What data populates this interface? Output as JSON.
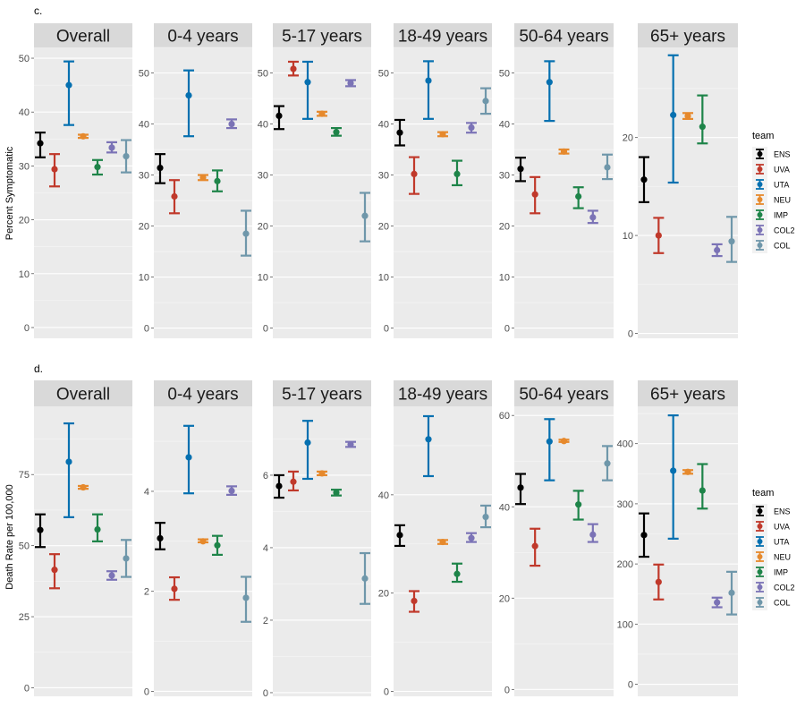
{
  "chart_data": [
    {
      "type": "errorbar",
      "tag": "c.",
      "ylabel": "Percent Symptomatic",
      "legend": {
        "title": "team",
        "placement": "right"
      },
      "panels": [
        {
          "title": "Overall",
          "ylim": [
            -2,
            52
          ],
          "yticks": [
            0,
            10,
            20,
            30,
            40,
            50
          ],
          "points": [
            {
              "team": "ENS",
              "y": 34.2,
              "lo": 31.6,
              "hi": 36.2
            },
            {
              "team": "UVA",
              "y": 29.4,
              "lo": 26.2,
              "hi": 32.2
            },
            {
              "team": "UTA",
              "y": 45.0,
              "lo": 37.6,
              "hi": 49.4
            },
            {
              "team": "NEU",
              "y": 35.5,
              "lo": 35.2,
              "hi": 35.8
            },
            {
              "team": "IMP",
              "y": 29.8,
              "lo": 28.4,
              "hi": 31.1
            },
            {
              "team": "COL2",
              "y": 33.4,
              "lo": 32.5,
              "hi": 34.4
            },
            {
              "team": "COL",
              "y": 31.8,
              "lo": 28.8,
              "hi": 34.8
            }
          ]
        },
        {
          "title": "0-4 years",
          "ylim": [
            -2,
            55
          ],
          "yticks": [
            0,
            10,
            20,
            30,
            40,
            50
          ],
          "points": [
            {
              "team": "ENS",
              "y": 31.4,
              "lo": 28.4,
              "hi": 34.1
            },
            {
              "team": "UVA",
              "y": 25.8,
              "lo": 22.5,
              "hi": 29.0
            },
            {
              "team": "UTA",
              "y": 45.6,
              "lo": 37.6,
              "hi": 50.5
            },
            {
              "team": "NEU",
              "y": 29.5,
              "lo": 29.0,
              "hi": 30.0
            },
            {
              "team": "IMP",
              "y": 28.8,
              "lo": 26.8,
              "hi": 30.9
            },
            {
              "team": "COL2",
              "y": 40.0,
              "lo": 39.2,
              "hi": 40.9
            },
            {
              "team": "COL",
              "y": 18.5,
              "lo": 14.2,
              "hi": 23.0
            }
          ]
        },
        {
          "title": "5-17 years",
          "ylim": [
            -2,
            55
          ],
          "yticks": [
            0,
            10,
            20,
            30,
            40,
            50
          ],
          "points": [
            {
              "team": "ENS",
              "y": 41.6,
              "lo": 39.0,
              "hi": 43.5
            },
            {
              "team": "UVA",
              "y": 50.8,
              "lo": 49.5,
              "hi": 52.2
            },
            {
              "team": "UTA",
              "y": 48.2,
              "lo": 41.0,
              "hi": 52.2
            },
            {
              "team": "NEU",
              "y": 42.0,
              "lo": 41.6,
              "hi": 42.4
            },
            {
              "team": "IMP",
              "y": 38.4,
              "lo": 37.7,
              "hi": 39.2
            },
            {
              "team": "COL2",
              "y": 48.0,
              "lo": 47.4,
              "hi": 48.6
            },
            {
              "team": "COL",
              "y": 22.0,
              "lo": 17.0,
              "hi": 26.5
            }
          ]
        },
        {
          "title": "18-49 years",
          "ylim": [
            -2,
            55
          ],
          "yticks": [
            0,
            10,
            20,
            30,
            40,
            50
          ],
          "points": [
            {
              "team": "ENS",
              "y": 38.3,
              "lo": 35.8,
              "hi": 40.8
            },
            {
              "team": "UVA",
              "y": 30.2,
              "lo": 26.3,
              "hi": 33.5
            },
            {
              "team": "UTA",
              "y": 48.5,
              "lo": 41.0,
              "hi": 52.3
            },
            {
              "team": "NEU",
              "y": 38.0,
              "lo": 37.6,
              "hi": 38.4
            },
            {
              "team": "IMP",
              "y": 30.2,
              "lo": 28.0,
              "hi": 32.8
            },
            {
              "team": "COL2",
              "y": 39.3,
              "lo": 38.3,
              "hi": 40.2
            },
            {
              "team": "COL",
              "y": 44.5,
              "lo": 42.0,
              "hi": 47.0
            }
          ]
        },
        {
          "title": "50-64 years",
          "ylim": [
            -2,
            55
          ],
          "yticks": [
            0,
            10,
            20,
            30,
            40,
            50
          ],
          "points": [
            {
              "team": "ENS",
              "y": 31.2,
              "lo": 28.8,
              "hi": 33.4
            },
            {
              "team": "UVA",
              "y": 26.2,
              "lo": 22.5,
              "hi": 29.6
            },
            {
              "team": "UTA",
              "y": 48.2,
              "lo": 40.6,
              "hi": 52.3
            },
            {
              "team": "NEU",
              "y": 34.6,
              "lo": 34.2,
              "hi": 35.0
            },
            {
              "team": "IMP",
              "y": 25.8,
              "lo": 23.5,
              "hi": 27.6
            },
            {
              "team": "COL2",
              "y": 21.7,
              "lo": 20.6,
              "hi": 23.0
            },
            {
              "team": "COL",
              "y": 31.5,
              "lo": 29.2,
              "hi": 34.0
            }
          ]
        },
        {
          "title": "65+ years",
          "ylim": [
            -0.5,
            29.2
          ],
          "yticks": [
            0,
            10,
            20
          ],
          "points": [
            {
              "team": "ENS",
              "y": 15.7,
              "lo": 13.4,
              "hi": 18.0
            },
            {
              "team": "UVA",
              "y": 10.0,
              "lo": 8.2,
              "hi": 11.8
            },
            {
              "team": "UTA",
              "y": 22.3,
              "lo": 15.4,
              "hi": 28.4
            },
            {
              "team": "NEU",
              "y": 22.2,
              "lo": 21.9,
              "hi": 22.5
            },
            {
              "team": "IMP",
              "y": 21.1,
              "lo": 19.4,
              "hi": 24.3
            },
            {
              "team": "COL2",
              "y": 8.5,
              "lo": 7.9,
              "hi": 9.1
            },
            {
              "team": "COL",
              "y": 9.4,
              "lo": 7.3,
              "hi": 11.9
            }
          ]
        }
      ]
    },
    {
      "type": "errorbar",
      "tag": "d.",
      "ylabel": "Death Rate per 100,000",
      "legend": {
        "title": "team",
        "placement": "right"
      },
      "panels": [
        {
          "title": "Overall",
          "ylim": [
            -3,
            99
          ],
          "yticks": [
            0,
            25,
            50,
            75
          ],
          "ytick_labels": [
            "0",
            "25",
            "50",
            "75"
          ],
          "points": [
            {
              "team": "ENS",
              "y": 55.5,
              "lo": 49.5,
              "hi": 61.0
            },
            {
              "team": "UVA",
              "y": 41.5,
              "lo": 35.0,
              "hi": 47.0
            },
            {
              "team": "UTA",
              "y": 79.5,
              "lo": 60.0,
              "hi": 93.0
            },
            {
              "team": "NEU",
              "y": 70.5,
              "lo": 70.0,
              "hi": 71.0
            },
            {
              "team": "IMP",
              "y": 55.7,
              "lo": 51.5,
              "hi": 61.0
            },
            {
              "team": "COL2",
              "y": 39.5,
              "lo": 38.0,
              "hi": 41.0
            },
            {
              "team": "COL",
              "y": 45.5,
              "lo": 39.0,
              "hi": 52.0
            }
          ]
        },
        {
          "title": "0-4 years",
          "ylim": [
            -0.1,
            5.7
          ],
          "yticks": [
            0,
            2,
            4
          ],
          "ytick_labels": [
            "0",
            "2",
            "4"
          ],
          "points": [
            {
              "team": "ENS",
              "y": 3.06,
              "lo": 2.84,
              "hi": 3.37
            },
            {
              "team": "UVA",
              "y": 2.05,
              "lo": 1.83,
              "hi": 2.28
            },
            {
              "team": "UTA",
              "y": 4.68,
              "lo": 3.96,
              "hi": 5.31
            },
            {
              "team": "NEU",
              "y": 3.0,
              "lo": 2.98,
              "hi": 3.04
            },
            {
              "team": "IMP",
              "y": 2.92,
              "lo": 2.73,
              "hi": 3.11
            },
            {
              "team": "COL2",
              "y": 4.01,
              "lo": 3.93,
              "hi": 4.1
            },
            {
              "team": "COL",
              "y": 1.87,
              "lo": 1.39,
              "hi": 2.29
            }
          ]
        },
        {
          "title": "5-17 years",
          "ylim": [
            -0.1,
            7.9
          ],
          "yticks": [
            0,
            2,
            4,
            6
          ],
          "ytick_labels": [
            "0",
            "2",
            "4",
            "6"
          ],
          "points": [
            {
              "team": "ENS",
              "y": 5.7,
              "lo": 5.38,
              "hi": 6.0
            },
            {
              "team": "UVA",
              "y": 5.82,
              "lo": 5.58,
              "hi": 6.1
            },
            {
              "team": "UTA",
              "y": 6.9,
              "lo": 5.9,
              "hi": 7.5
            },
            {
              "team": "NEU",
              "y": 6.05,
              "lo": 6.0,
              "hi": 6.1
            },
            {
              "team": "IMP",
              "y": 5.52,
              "lo": 5.44,
              "hi": 5.6
            },
            {
              "team": "COL2",
              "y": 6.85,
              "lo": 6.78,
              "hi": 6.92
            },
            {
              "team": "COL",
              "y": 3.15,
              "lo": 2.45,
              "hi": 3.85
            }
          ]
        },
        {
          "title": "18-49 years",
          "ylim": [
            -1,
            58
          ],
          "yticks": [
            0,
            20,
            40
          ],
          "ytick_labels": [
            "0",
            "20",
            "40"
          ],
          "points": [
            {
              "team": "ENS",
              "y": 31.8,
              "lo": 29.6,
              "hi": 33.8
            },
            {
              "team": "UVA",
              "y": 18.4,
              "lo": 16.2,
              "hi": 20.4
            },
            {
              "team": "UTA",
              "y": 51.3,
              "lo": 43.8,
              "hi": 56.0
            },
            {
              "team": "NEU",
              "y": 30.4,
              "lo": 30.0,
              "hi": 30.8
            },
            {
              "team": "IMP",
              "y": 23.9,
              "lo": 22.3,
              "hi": 26.0
            },
            {
              "team": "COL2",
              "y": 31.2,
              "lo": 30.4,
              "hi": 32.2
            },
            {
              "team": "COL",
              "y": 35.5,
              "lo": 33.4,
              "hi": 37.8
            }
          ]
        },
        {
          "title": "50-64 years",
          "ylim": [
            -1.5,
            62
          ],
          "yticks": [
            0,
            20,
            40,
            60
          ],
          "ytick_labels": [
            "0",
            "20",
            "40",
            "60"
          ],
          "points": [
            {
              "team": "ENS",
              "y": 44.2,
              "lo": 40.6,
              "hi": 47.2
            },
            {
              "team": "UVA",
              "y": 31.4,
              "lo": 27.1,
              "hi": 35.2
            },
            {
              "team": "UTA",
              "y": 54.3,
              "lo": 45.8,
              "hi": 59.2
            },
            {
              "team": "NEU",
              "y": 54.4,
              "lo": 54.2,
              "hi": 54.7
            },
            {
              "team": "IMP",
              "y": 40.5,
              "lo": 37.2,
              "hi": 43.5
            },
            {
              "team": "COL2",
              "y": 33.9,
              "lo": 32.3,
              "hi": 36.2
            },
            {
              "team": "COL",
              "y": 49.5,
              "lo": 45.8,
              "hi": 53.3
            }
          ]
        },
        {
          "title": "65+ years",
          "ylim": [
            -20,
            462
          ],
          "yticks": [
            0,
            100,
            200,
            300,
            400
          ],
          "ytick_labels": [
            "0",
            "100",
            "200",
            "300",
            "400"
          ],
          "points": [
            {
              "team": "ENS",
              "y": 248,
              "lo": 212,
              "hi": 284
            },
            {
              "team": "UVA",
              "y": 170,
              "lo": 141,
              "hi": 199
            },
            {
              "team": "UTA",
              "y": 355,
              "lo": 242,
              "hi": 447
            },
            {
              "team": "NEU",
              "y": 353,
              "lo": 350,
              "hi": 356
            },
            {
              "team": "IMP",
              "y": 322,
              "lo": 292,
              "hi": 366
            },
            {
              "team": "COL2",
              "y": 136,
              "lo": 128,
              "hi": 144
            },
            {
              "team": "COL",
              "y": 152,
              "lo": 116,
              "hi": 187
            }
          ]
        }
      ]
    }
  ],
  "teams": [
    {
      "name": "ENS",
      "color": "#000000"
    },
    {
      "name": "UVA",
      "color": "#c0392b"
    },
    {
      "name": "UTA",
      "color": "#0570b0"
    },
    {
      "name": "NEU",
      "color": "#e6892c"
    },
    {
      "name": "IMP",
      "color": "#1e8449"
    },
    {
      "name": "COL2",
      "color": "#7b73b6"
    },
    {
      "name": "COL",
      "color": "#6f97aa"
    }
  ]
}
